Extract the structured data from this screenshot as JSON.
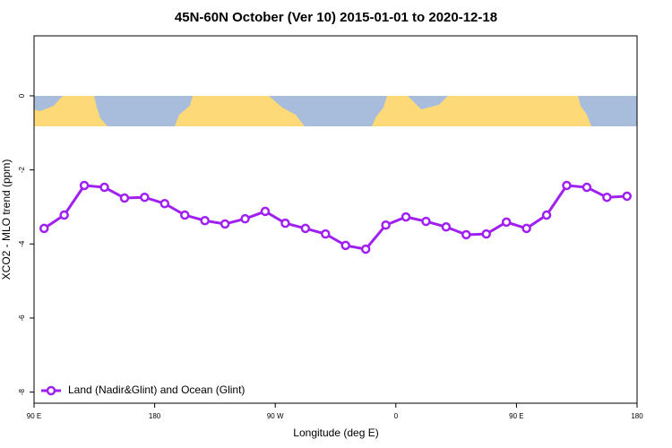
{
  "chart_data": {
    "type": "line",
    "title": "45N-60N October (Ver 10)   2015-01-01 to 2020-12-18",
    "x_label": "Longitude (deg E)",
    "y_label": "XCO2 - MLO trend (ppm)",
    "x": [
      97.5,
      112.5,
      127.5,
      142.5,
      157.5,
      172.5,
      187.5,
      202.5,
      217.5,
      232.5,
      247.5,
      262.5,
      277.5,
      292.5,
      307.5,
      322.5,
      337.5,
      352.5,
      367.5,
      382.5,
      397.5,
      412.5,
      427.5,
      442.5,
      457.5,
      472.5,
      487.5,
      502.5,
      517.5,
      532.5
    ],
    "series": [
      {
        "name": "Land (Nadir&Glint) and Ocean (Glint)",
        "color": "#a020f0",
        "values": [
          -3.58,
          -3.22,
          -2.42,
          -2.47,
          -2.76,
          -2.74,
          -2.91,
          -3.22,
          -3.37,
          -3.46,
          -3.32,
          -3.12,
          -3.44,
          -3.58,
          -3.73,
          -4.04,
          -4.14,
          -3.49,
          -3.27,
          -3.39,
          -3.54,
          -3.75,
          -3.73,
          -3.41,
          -3.58,
          -3.22,
          -2.42,
          -2.47,
          -2.74,
          -2.71
        ]
      }
    ],
    "xlim": [
      90,
      540
    ],
    "xticks": [
      {
        "value": 90,
        "label": "90 E"
      },
      180,
      {
        "value": 270,
        "label": "90 W"
      },
      {
        "value": 360,
        "label": "0"
      },
      {
        "value": 450,
        "label": "90 E"
      },
      {
        "value": 540,
        "label": "180"
      }
    ],
    "ylim": [
      -8.3,
      1.62
    ],
    "yticks": [
      0,
      -2,
      -4,
      -6,
      -8
    ],
    "legend": "bottom-left"
  }
}
